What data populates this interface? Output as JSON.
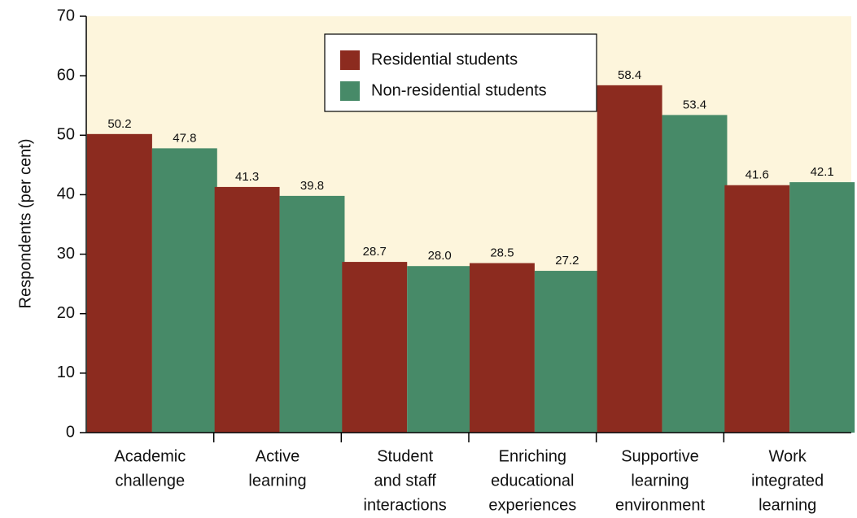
{
  "chart_data": {
    "type": "bar",
    "y_label": "Respondents (per cent)",
    "categories": [
      [
        "Academic",
        "challenge"
      ],
      [
        "Active",
        "learning"
      ],
      [
        "Student",
        "and staff",
        "interactions"
      ],
      [
        "Enriching",
        "educational",
        "experiences"
      ],
      [
        "Supportive",
        "learning",
        "environment"
      ],
      [
        "Work",
        "integrated",
        "learning"
      ]
    ],
    "series": [
      {
        "name": "Residential students",
        "color": "#8c2b1f",
        "values": [
          50.2,
          41.3,
          28.7,
          28.5,
          58.4,
          41.6
        ],
        "value_labels": [
          "50.2",
          "41.3",
          "28.7",
          "28.5",
          "58.4",
          "41.6"
        ]
      },
      {
        "name": "Non-residential students",
        "color": "#478a68",
        "values": [
          47.8,
          39.8,
          28.0,
          27.2,
          53.4,
          42.1
        ],
        "value_labels": [
          "47.8",
          "39.8",
          "28.0",
          "27.2",
          "53.4",
          "42.1"
        ]
      }
    ],
    "ylim": [
      0,
      70
    ],
    "yticks": [
      0,
      10,
      20,
      30,
      40,
      50,
      60,
      70
    ],
    "background": "#fdf5dc"
  }
}
